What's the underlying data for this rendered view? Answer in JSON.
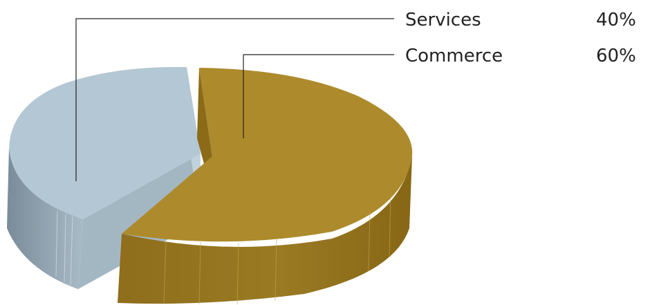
{
  "chart_data": {
    "type": "pie",
    "style": "3d-exploded",
    "title": "",
    "slices": [
      {
        "label": "Services",
        "value": 40,
        "value_label": "40%",
        "color": "#b3c7d4"
      },
      {
        "label": "Commerce",
        "value": 60,
        "value_label": "60%",
        "color": "#ad8a2b"
      }
    ],
    "legend": "right, leader lines"
  }
}
